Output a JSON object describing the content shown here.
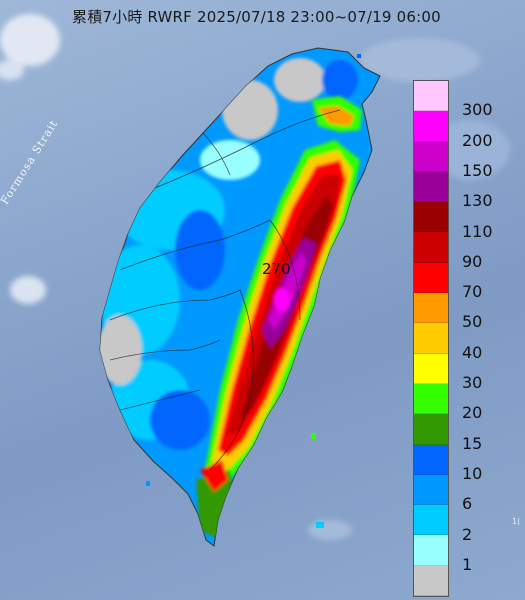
{
  "title": "累積7小時 RWRF 2025/07/18 23:00~07/19 06:00",
  "strait_label": "Formosa Strait",
  "peak_label": "270",
  "corner_mark": "1(",
  "legend": {
    "items": [
      {
        "label": "300",
        "color": "#ffc6ff"
      },
      {
        "label": "200",
        "color": "#ff00ff"
      },
      {
        "label": "150",
        "color": "#cc00cc"
      },
      {
        "label": "130",
        "color": "#990099"
      },
      {
        "label": "110",
        "color": "#990000"
      },
      {
        "label": "90",
        "color": "#cc0000"
      },
      {
        "label": "70",
        "color": "#ff0000"
      },
      {
        "label": "50",
        "color": "#ff9900"
      },
      {
        "label": "40",
        "color": "#ffcc00"
      },
      {
        "label": "30",
        "color": "#ffff00"
      },
      {
        "label": "20",
        "color": "#33ff00"
      },
      {
        "label": "15",
        "color": "#339900"
      },
      {
        "label": "10",
        "color": "#0066ff"
      },
      {
        "label": "6",
        "color": "#0099ff"
      },
      {
        "label": "2",
        "color": "#00ccff"
      },
      {
        "label": "1",
        "color": "#99ffff"
      },
      {
        "label": "",
        "color": "#c8c8c8"
      }
    ]
  }
}
